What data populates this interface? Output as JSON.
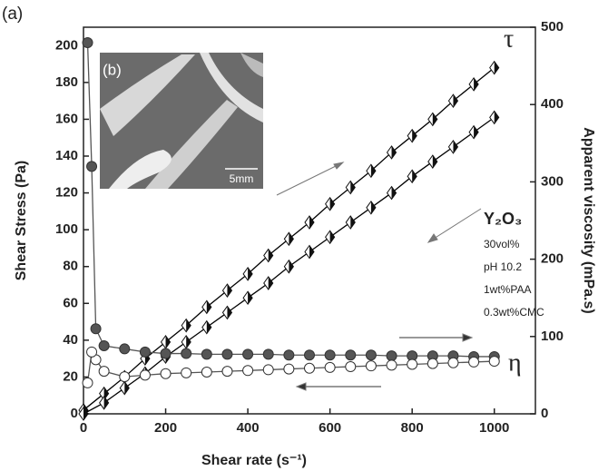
{
  "chart_data": {
    "type": "line",
    "panel_label": "(a)",
    "inset_label": "(b)",
    "inset_scale": "5mm",
    "xlabel": "Shear rate (s⁻¹)",
    "ylabel": "Shear Stress (Pa)",
    "y2label": "Apparent viscosity (mPa.s)",
    "annotations": [
      "τ",
      "η"
    ],
    "notes": {
      "compound": "Y₂O₃",
      "lines": [
        "30vol%",
        "pH 10.2",
        "1wt%PAA",
        "0.3wt%CMC"
      ]
    },
    "xlim": [
      0,
      1100
    ],
    "xticks": [
      0,
      200,
      400,
      600,
      800,
      1000
    ],
    "ylim": [
      0,
      210
    ],
    "yticks": [
      0,
      20,
      40,
      60,
      80,
      100,
      120,
      140,
      160,
      180,
      200
    ],
    "y2lim": [
      0,
      500
    ],
    "y2ticks": [
      0,
      100,
      200,
      300,
      400,
      500
    ],
    "series": [
      {
        "color": "#000000",
        "marker": "diamond",
        "filled": true,
        "x": [
          0,
          50,
          100,
          150,
          200,
          250,
          300,
          350,
          400,
          450,
          500,
          550,
          600,
          650,
          700,
          750,
          800,
          850,
          900,
          950,
          1000
        ],
        "values": [
          2,
          11,
          20,
          30,
          39,
          48,
          58,
          67,
          76,
          86,
          95,
          104,
          114,
          123,
          132,
          142,
          151,
          160,
          170,
          179,
          188
        ]
      },
      {
        "color": "#000000",
        "marker": "diamond",
        "filled": true,
        "x": [
          1000,
          950,
          900,
          850,
          800,
          750,
          700,
          650,
          600,
          550,
          500,
          450,
          400,
          350,
          300,
          250,
          200,
          150,
          100,
          50,
          0
        ],
        "values": [
          161,
          153,
          145,
          137,
          129,
          120,
          112,
          104,
          96,
          88,
          80,
          71,
          63,
          55,
          47,
          39,
          31,
          22,
          14,
          6,
          0
        ]
      },
      {
        "color": "#555555",
        "marker": "circle",
        "filled": true,
        "axis": "y2",
        "x": [
          10,
          20,
          30,
          50,
          100,
          150,
          200,
          250,
          300,
          350,
          400,
          450,
          500,
          550,
          600,
          650,
          700,
          750,
          800,
          850,
          900,
          950,
          1000
        ],
        "values": [
          480,
          320,
          110,
          88,
          84,
          80,
          78,
          78,
          77,
          77,
          77,
          77,
          76,
          76,
          76,
          76,
          76,
          75,
          75,
          75,
          75,
          74,
          74
        ]
      },
      {
        "color": "#555555",
        "marker": "circle",
        "filled": false,
        "axis": "y2",
        "x": [
          1000,
          950,
          900,
          850,
          800,
          750,
          700,
          650,
          600,
          550,
          500,
          450,
          400,
          350,
          300,
          250,
          200,
          150,
          100,
          50,
          30,
          20,
          10
        ],
        "values": [
          68,
          67,
          66,
          65,
          64,
          63,
          62,
          61,
          60,
          59,
          58,
          57,
          56,
          55,
          54,
          53,
          52,
          50,
          48,
          55,
          70,
          80,
          40
        ]
      }
    ]
  }
}
